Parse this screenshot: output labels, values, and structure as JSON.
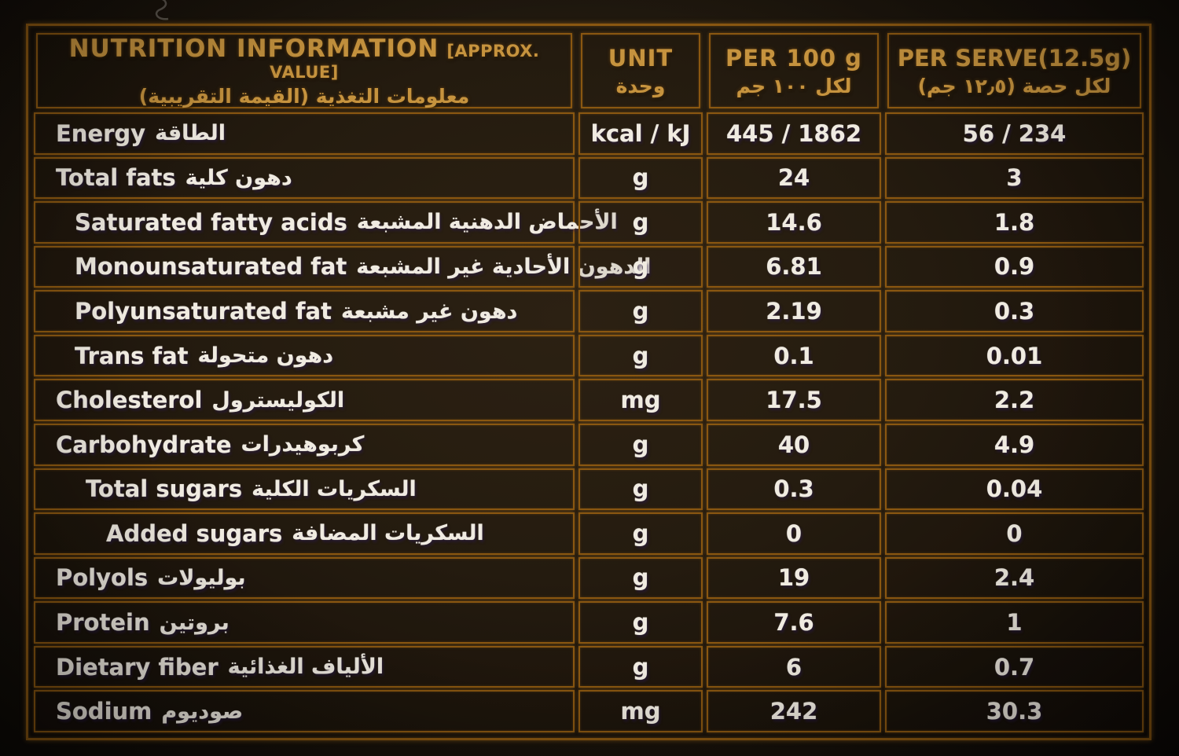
{
  "theme": {
    "line_color": "#8a5711",
    "gold_text_color": "#c6933e",
    "white_text_color": "#f0ebe1",
    "background_color": "#221a0f"
  },
  "header": {
    "title": {
      "en": "NUTRITION INFORMATION",
      "approx": "[APPROX. VALUE]",
      "ar": "معلومات التغذية (القيمة التقريبية)"
    },
    "columns": {
      "unit": {
        "en": "UNIT",
        "ar": "وحدة"
      },
      "per100": {
        "en": "PER 100 g",
        "ar": "لكل ١٠٠ جم"
      },
      "perserve": {
        "en": "PER SERVE(12.5g)",
        "ar": "لكل حصة (١٢٫٥ جم)"
      }
    }
  },
  "rows": [
    {
      "en": "Energy",
      "ar": "الطاقة",
      "unit": "kcal / kJ",
      "per100": "445 / 1862",
      "perserve": "56 / 234",
      "indent": 0
    },
    {
      "en": "Total fats",
      "ar": "دهون كلية",
      "unit": "g",
      "per100": "24",
      "perserve": "3",
      "indent": 0
    },
    {
      "en": "Saturated fatty acids",
      "ar": "الأحماض الدهنية المشبعة",
      "unit": "g",
      "per100": "14.6",
      "perserve": "1.8",
      "indent": 1
    },
    {
      "en": "Monounsaturated fat",
      "ar": "الدهون الأحادية غير المشبعة",
      "unit": "g",
      "per100": "6.81",
      "perserve": "0.9",
      "indent": 1
    },
    {
      "en": "Polyunsaturated fat",
      "ar": "دهون غير مشبعة",
      "unit": "g",
      "per100": "2.19",
      "perserve": "0.3",
      "indent": 1
    },
    {
      "en": "Trans fat",
      "ar": "دهون متحولة",
      "unit": "g",
      "per100": "0.1",
      "perserve": "0.01",
      "indent": 1
    },
    {
      "en": "Cholesterol",
      "ar": "الكوليسترول",
      "unit": "mg",
      "per100": "17.5",
      "perserve": "2.2",
      "indent": 0
    },
    {
      "en": "Carbohydrate",
      "ar": "كربوهيدرات",
      "unit": "g",
      "per100": "40",
      "perserve": "4.9",
      "indent": 0
    },
    {
      "en": "Total sugars",
      "ar": "السكريات الكلية",
      "unit": "g",
      "per100": "0.3",
      "perserve": "0.04",
      "indent": 2
    },
    {
      "en": "Added sugars",
      "ar": "السكريات المضافة",
      "unit": "g",
      "per100": "0",
      "perserve": "0",
      "indent": 3
    },
    {
      "en": "Polyols",
      "ar": "بوليولات",
      "unit": "g",
      "per100": "19",
      "perserve": "2.4",
      "indent": 0
    },
    {
      "en": "Protein",
      "ar": "بروتين",
      "unit": "g",
      "per100": "7.6",
      "perserve": "1",
      "indent": 0
    },
    {
      "en": "Dietary fiber",
      "ar": "الألياف الغذائية",
      "unit": "g",
      "per100": "6",
      "perserve": "0.7",
      "indent": 0
    },
    {
      "en": "Sodium",
      "ar": "صوديوم",
      "unit": "mg",
      "per100": "242",
      "perserve": "30.3",
      "indent": 0
    }
  ]
}
